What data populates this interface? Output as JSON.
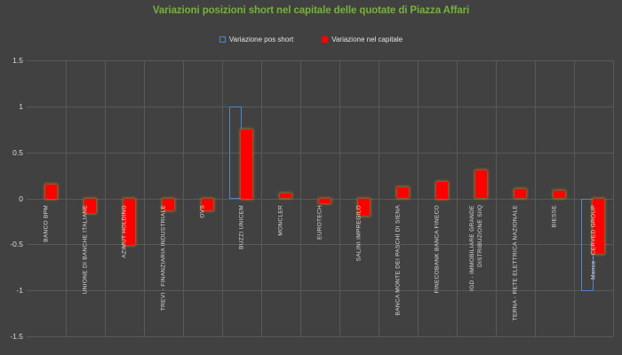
{
  "window": {
    "background": "#414141"
  },
  "colors": {
    "title": "#76B041",
    "short_blue": "#4E86C8",
    "capitale_red": "#FF0000",
    "glow_orange": "#CA7028",
    "grid": "#595959",
    "axis_text": "#D9D9D9",
    "label_text": "#DCDCDC"
  },
  "legend": {
    "short": "Variazione pos short",
    "capitale": "Variazione nel capitale"
  },
  "chart_data": {
    "type": "bar",
    "title": "Variazioni posizioni short nel capitale delle quotate di Piazza Affari",
    "categories": [
      "BANCO BPM",
      "UNIONE DI BANCHE ITALIANE",
      "AZIMUT HOLDING",
      "TREVI - FINANZIARIA INDUSTRIALE",
      "OVS",
      "BUZZI UNICEM",
      "MONCLER",
      "EUROTECH",
      "SALINI IMPREGILO",
      "BANCA MONTE DEI PASCHI DI SIENA",
      "IGD - IMMOBILIARE GRANDE DISTRIBUZIONE SIIQ",
      "TERNA - RETE ELETTRICA NAZIONALE",
      "BIESSE",
      "Manca - CERVED GROUP"
    ],
    "categories_full": [
      "BANCO BPM",
      "UNIONE DI BANCHE ITALIANE",
      "AZIMUT HOLDING",
      "TREVI - FINANZIARIA INDUSTRIALE",
      "OVS",
      "BUZZI UNICEM",
      "MONCLER",
      "EUROTECH",
      "SALINI IMPREGILO",
      "BANCA MONTE DEI PASCHI DI SIENA",
      "FINECOBANK BANCA FINECO",
      "IGD - IMMOBILIARE GRANDE DISTRIBUZIONE SIIQ",
      "TERNA - RETE ELETTRICA NAZIONALE",
      "BIESSE",
      "Manca - CERVED GROUP"
    ],
    "series": [
      {
        "name": "Variazione pos short",
        "style": "outlined",
        "color": "#4E86C8",
        "values": [
          0,
          0,
          0,
          0,
          0,
          1.0,
          0,
          0,
          0,
          0,
          0,
          0,
          0,
          0,
          -1.0
        ]
      },
      {
        "name": "Variazione nel capitale",
        "style": "solid",
        "color": "#FF0000",
        "values": [
          0.15,
          -0.15,
          -0.5,
          -0.13,
          -0.13,
          0.75,
          0.05,
          -0.05,
          -0.18,
          0.12,
          0.18,
          0.3,
          0.1,
          0.08,
          -0.6
        ]
      }
    ],
    "ylim": [
      -1.5,
      1.5
    ],
    "yticks": [
      "1.5",
      "1",
      "0.5",
      "0",
      "-0.5",
      "-1",
      "-1.5"
    ],
    "grid": true,
    "legend_position": "top center",
    "x_label_rotation": "vertical bottom-to-top, anchored below zero axis"
  }
}
